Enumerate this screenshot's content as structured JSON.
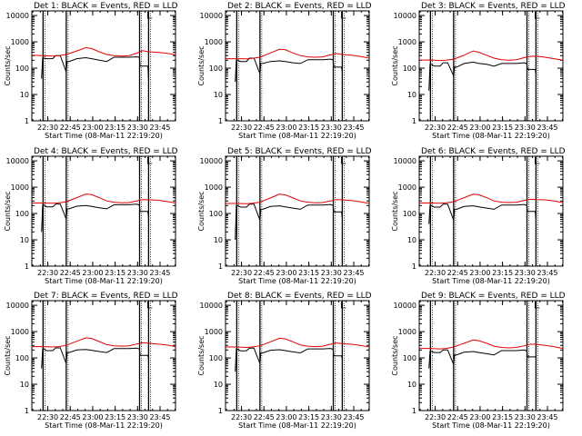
{
  "chart_data": {
    "type": "line",
    "figure_note": "",
    "shared": {
      "xlabel": "Start Time (08-Mar-11 22:19:20)",
      "ylabel": "Counts/sec",
      "x_ticks": [
        "22:30",
        "22:45",
        "23:00",
        "23:15",
        "23:30",
        "23:45"
      ],
      "x_tick_minutes": [
        10.67,
        25.67,
        40.67,
        55.67,
        70.67,
        85.67
      ],
      "xlim_minutes": [
        0,
        96
      ],
      "y_ticks": [
        "1",
        "10",
        "100",
        "1000",
        "10000"
      ],
      "ylim": [
        1,
        15000
      ],
      "y_scale": "log",
      "vertical_markers_minutes": [
        7.5,
        23.0,
        72.0,
        78.0
      ],
      "black_series_name": "Events",
      "red_series_name": "LLD",
      "colors": {
        "black": "#000000",
        "red": "#e00000"
      }
    },
    "panels": [
      {
        "title": "Det 1: BLACK = Events, RED = LLD",
        "red": {
          "x": [
            0,
            7,
            14,
            18,
            23,
            30,
            36,
            40,
            45,
            50,
            55,
            60,
            65,
            70,
            74,
            78,
            84,
            90,
            96
          ],
          "y": [
            310,
            300,
            290,
            300,
            330,
            450,
            600,
            560,
            420,
            330,
            300,
            290,
            300,
            370,
            460,
            420,
            400,
            370,
            320
          ]
        },
        "black": {
          "x": [
            6.5,
            7.2,
            8,
            10,
            14,
            16,
            19,
            23,
            23.6,
            25,
            30,
            36,
            40,
            45,
            50,
            55,
            60,
            65,
            70,
            71.8,
            72.4,
            75,
            77.5,
            78
          ],
          "y": [
            40,
            250,
            240,
            230,
            230,
            300,
            300,
            70,
            180,
            180,
            230,
            250,
            230,
            200,
            180,
            260,
            260,
            260,
            270,
            260,
            120,
            120,
            120,
            40
          ]
        }
      },
      {
        "title": "Det 2: BLACK = Events, RED = LLD",
        "red": {
          "x": [
            0,
            7,
            14,
            18,
            23,
            30,
            36,
            40,
            45,
            50,
            55,
            60,
            65,
            70,
            74,
            78,
            84,
            90,
            96
          ],
          "y": [
            230,
            230,
            225,
            235,
            260,
            380,
            520,
            500,
            380,
            300,
            270,
            260,
            270,
            320,
            360,
            330,
            310,
            280,
            240
          ]
        },
        "black": {
          "x": [
            6.5,
            7.2,
            8,
            10,
            14,
            16,
            19,
            23,
            23.6,
            25,
            30,
            36,
            40,
            45,
            50,
            55,
            60,
            65,
            70,
            71.8,
            72.4,
            75,
            77.5,
            78
          ],
          "y": [
            30,
            200,
            200,
            180,
            180,
            240,
            240,
            60,
            150,
            150,
            180,
            190,
            180,
            160,
            150,
            210,
            210,
            210,
            220,
            210,
            110,
            110,
            110,
            70
          ]
        }
      },
      {
        "title": "Det 3: BLACK = Events, RED = LLD",
        "red": {
          "x": [
            0,
            7,
            14,
            18,
            23,
            30,
            36,
            40,
            45,
            50,
            55,
            60,
            65,
            70,
            74,
            78,
            84,
            90,
            96
          ],
          "y": [
            200,
            205,
            195,
            200,
            220,
            310,
            450,
            400,
            310,
            240,
            210,
            200,
            210,
            250,
            280,
            290,
            260,
            230,
            200
          ]
        },
        "black": {
          "x": [
            6.5,
            7.2,
            8,
            10,
            14,
            16,
            19,
            23,
            23.6,
            25,
            30,
            36,
            40,
            45,
            50,
            55,
            60,
            65,
            70,
            71.8,
            72.4,
            75,
            77.5,
            78
          ],
          "y": [
            14,
            140,
            140,
            120,
            120,
            160,
            160,
            50,
            110,
            110,
            150,
            170,
            150,
            140,
            120,
            150,
            150,
            150,
            160,
            150,
            90,
            90,
            90,
            60
          ]
        }
      },
      {
        "title": "Det 4: BLACK = Events, RED = LLD",
        "red": {
          "x": [
            0,
            7,
            14,
            18,
            23,
            30,
            36,
            40,
            45,
            50,
            55,
            60,
            65,
            70,
            74,
            78,
            84,
            90,
            96
          ],
          "y": [
            250,
            250,
            245,
            255,
            280,
            400,
            550,
            520,
            400,
            300,
            270,
            255,
            260,
            300,
            340,
            330,
            320,
            290,
            250
          ]
        },
        "black": {
          "x": [
            6.5,
            7.2,
            8,
            10,
            14,
            16,
            19,
            23,
            23.6,
            25,
            30,
            36,
            40,
            45,
            50,
            55,
            60,
            65,
            70,
            71.8,
            72.4,
            75,
            77.5,
            78
          ],
          "y": [
            20,
            210,
            210,
            180,
            180,
            230,
            230,
            60,
            150,
            150,
            190,
            200,
            185,
            165,
            150,
            215,
            215,
            215,
            225,
            210,
            120,
            120,
            120,
            70
          ]
        }
      },
      {
        "title": "Det 5: BLACK = Events, RED = LLD",
        "red": {
          "x": [
            0,
            7,
            14,
            18,
            23,
            30,
            36,
            40,
            45,
            50,
            55,
            60,
            65,
            70,
            74,
            78,
            84,
            90,
            96
          ],
          "y": [
            240,
            240,
            235,
            245,
            270,
            390,
            540,
            510,
            390,
            300,
            270,
            255,
            260,
            300,
            340,
            330,
            310,
            280,
            240
          ]
        },
        "black": {
          "x": [
            6.5,
            7.2,
            8,
            10,
            14,
            16,
            19,
            23,
            23.6,
            25,
            30,
            36,
            40,
            45,
            50,
            55,
            60,
            65,
            70,
            71.8,
            72.4,
            75,
            77.5,
            78
          ],
          "y": [
            10,
            200,
            200,
            175,
            175,
            225,
            225,
            55,
            145,
            145,
            185,
            195,
            180,
            160,
            145,
            210,
            210,
            210,
            220,
            205,
            115,
            115,
            115,
            65
          ]
        }
      },
      {
        "title": "Det 6: BLACK = Events, RED = LLD",
        "red": {
          "x": [
            0,
            7,
            14,
            18,
            23,
            30,
            36,
            40,
            45,
            50,
            55,
            60,
            65,
            70,
            74,
            78,
            84,
            90,
            96
          ],
          "y": [
            250,
            250,
            245,
            255,
            280,
            400,
            540,
            510,
            400,
            300,
            270,
            260,
            270,
            310,
            350,
            340,
            330,
            300,
            260
          ]
        },
        "black": {
          "x": [
            6.5,
            7.2,
            8,
            10,
            14,
            16,
            19,
            23,
            23.6,
            25,
            30,
            36,
            40,
            45,
            50,
            55,
            60,
            65,
            70,
            71.8,
            72.4,
            75,
            77.5,
            78
          ],
          "y": [
            40,
            200,
            200,
            175,
            175,
            225,
            225,
            55,
            145,
            145,
            185,
            195,
            180,
            160,
            145,
            210,
            210,
            210,
            220,
            205,
            120,
            120,
            120,
            60
          ]
        }
      },
      {
        "title": "Det 7: BLACK = Events, RED = LLD",
        "red": {
          "x": [
            0,
            7,
            14,
            18,
            23,
            30,
            36,
            40,
            45,
            50,
            55,
            60,
            65,
            70,
            74,
            78,
            84,
            90,
            96
          ],
          "y": [
            270,
            270,
            260,
            270,
            300,
            430,
            580,
            550,
            420,
            320,
            290,
            280,
            290,
            340,
            380,
            360,
            340,
            310,
            270
          ]
        },
        "black": {
          "x": [
            6.5,
            7.2,
            8,
            10,
            14,
            16,
            19,
            23,
            23.6,
            25,
            30,
            36,
            40,
            45,
            50,
            55,
            60,
            65,
            70,
            71.8,
            72.4,
            75,
            77.5,
            78
          ],
          "y": [
            40,
            220,
            220,
            190,
            190,
            240,
            240,
            60,
            160,
            160,
            200,
            210,
            195,
            175,
            160,
            225,
            225,
            225,
            235,
            220,
            125,
            125,
            125,
            90
          ]
        }
      },
      {
        "title": "Det 8: BLACK = Events, RED = LLD",
        "red": {
          "x": [
            0,
            7,
            14,
            18,
            23,
            30,
            36,
            40,
            45,
            50,
            55,
            60,
            65,
            70,
            74,
            78,
            84,
            90,
            96
          ],
          "y": [
            260,
            260,
            250,
            260,
            290,
            410,
            560,
            530,
            410,
            310,
            280,
            270,
            280,
            330,
            370,
            350,
            330,
            300,
            260
          ]
        },
        "black": {
          "x": [
            6.5,
            7.2,
            8,
            10,
            14,
            16,
            19,
            23,
            23.6,
            25,
            30,
            36,
            40,
            45,
            50,
            55,
            60,
            65,
            70,
            71.8,
            72.4,
            75,
            77.5,
            78
          ],
          "y": [
            30,
            215,
            215,
            185,
            185,
            235,
            235,
            60,
            155,
            155,
            195,
            205,
            190,
            170,
            155,
            220,
            220,
            220,
            230,
            215,
            120,
            120,
            120,
            90
          ]
        }
      },
      {
        "title": "Det 9: BLACK = Events, RED = LLD",
        "red": {
          "x": [
            0,
            7,
            14,
            18,
            23,
            30,
            36,
            40,
            45,
            50,
            55,
            60,
            65,
            70,
            74,
            78,
            84,
            90,
            96
          ],
          "y": [
            230,
            230,
            220,
            230,
            260,
            360,
            480,
            450,
            360,
            280,
            250,
            240,
            250,
            290,
            330,
            330,
            300,
            270,
            230
          ]
        },
        "black": {
          "x": [
            6.5,
            7.2,
            8,
            10,
            14,
            16,
            19,
            23,
            23.6,
            25,
            30,
            36,
            40,
            45,
            50,
            55,
            60,
            65,
            70,
            71.8,
            72.4,
            75,
            77.5,
            78
          ],
          "y": [
            40,
            180,
            180,
            160,
            160,
            200,
            200,
            55,
            130,
            130,
            165,
            175,
            160,
            145,
            130,
            190,
            190,
            190,
            200,
            185,
            110,
            110,
            110,
            100
          ]
        }
      }
    ]
  }
}
